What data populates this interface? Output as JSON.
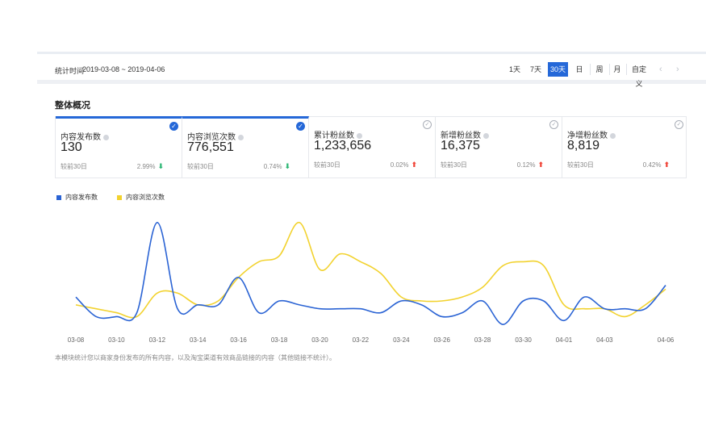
{
  "toolbar": {
    "range_label": "统计时间",
    "range_value": "2019-03-08 ~ 2019-04-06",
    "periods": [
      "1天",
      "7天",
      "30天",
      "日",
      "周",
      "月"
    ],
    "active_period": "30天",
    "custom_label": "自定义",
    "prev_icon": "chevron-left-icon",
    "next_icon": "chevron-right-icon"
  },
  "section_title": "整体概况",
  "cards": [
    {
      "title": "内容发布数",
      "value": "130",
      "compare": "较前30日",
      "change": "2.99%",
      "trend": "down",
      "selected": true
    },
    {
      "title": "内容浏览次数",
      "value": "776,551",
      "compare": "较前30日",
      "change": "0.74%",
      "trend": "down",
      "selected": true
    },
    {
      "title": "累计粉丝数",
      "value": "1,233,656",
      "compare": "较前30日",
      "change": "0.02%",
      "trend": "up",
      "selected": false
    },
    {
      "title": "新增粉丝数",
      "value": "16,375",
      "compare": "较前30日",
      "change": "0.12%",
      "trend": "up",
      "selected": false
    },
    {
      "title": "净增粉丝数",
      "value": "8,819",
      "compare": "较前30日",
      "change": "0.42%",
      "trend": "up",
      "selected": false
    }
  ],
  "colors": {
    "accent": "#2568d8",
    "series_publish": "#2a63d4",
    "series_views": "#f2d22e",
    "down": "#2bb673",
    "up": "#f04134"
  },
  "chart_data": {
    "type": "line",
    "x_tick_labels": [
      "03-08",
      "03-10",
      "03-12",
      "03-14",
      "03-16",
      "03-18",
      "03-20",
      "03-22",
      "03-24",
      "03-26",
      "03-28",
      "03-30",
      "04-01",
      "04-03",
      "04-06"
    ],
    "x": [
      "03-08",
      "03-09",
      "03-10",
      "03-11",
      "03-12",
      "03-13",
      "03-14",
      "03-15",
      "03-16",
      "03-17",
      "03-18",
      "03-19",
      "03-20",
      "03-21",
      "03-22",
      "03-23",
      "03-24",
      "03-25",
      "03-26",
      "03-27",
      "03-28",
      "03-29",
      "03-30",
      "03-31",
      "04-01",
      "04-02",
      "04-03",
      "04-04",
      "04-05",
      "04-06"
    ],
    "series": [
      {
        "name": "内容发布数",
        "values": [
          12,
          2,
          2,
          4,
          50,
          6,
          8,
          8,
          22,
          4,
          10,
          8,
          6,
          6,
          6,
          4,
          10,
          8,
          2,
          4,
          10,
          -2,
          10,
          10,
          0,
          12,
          6,
          6,
          6,
          18
        ]
      },
      {
        "name": "内容浏览次数",
        "values": [
          8,
          6,
          4,
          2,
          14,
          14,
          8,
          10,
          22,
          30,
          33,
          50,
          26,
          34,
          30,
          24,
          12,
          10,
          10,
          12,
          17,
          28,
          30,
          28,
          8,
          6,
          6,
          2,
          8,
          16
        ]
      }
    ],
    "ylim": [
      -4,
      52
    ],
    "legend": "top-left",
    "grid": false,
    "ylabel": "",
    "xlabel": ""
  },
  "legend_icons": "square-swatch",
  "footnote": "本模块统计您以商家身份发布的所有内容，以及淘宝渠道有效商品链接的内容（其他链接不统计）。"
}
